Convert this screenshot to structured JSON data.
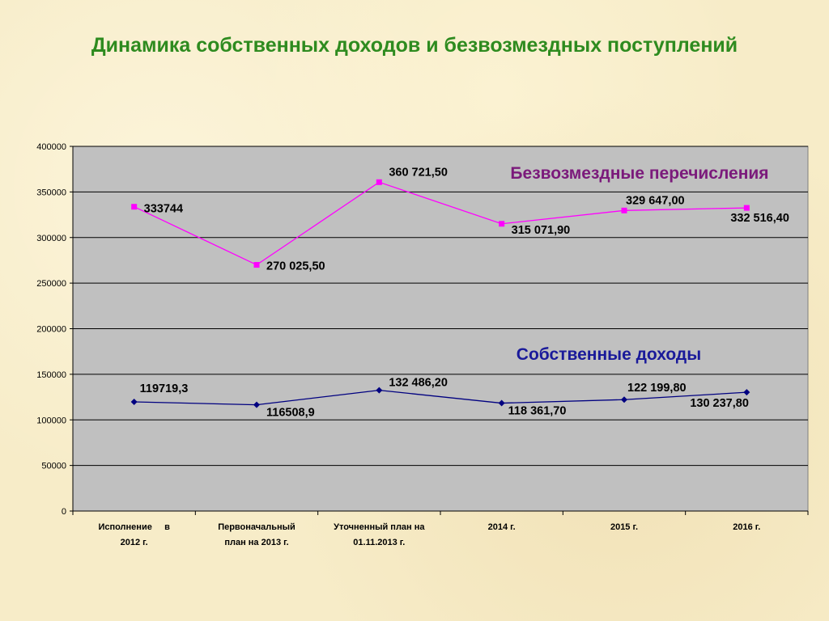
{
  "page": {
    "title": "Динамика собственных доходов и безвозмездных поступлений"
  },
  "chart_data": {
    "type": "line",
    "categories": [
      [
        "Исполнение     в",
        "2012 г."
      ],
      [
        "Первоначальный",
        "план на 2013 г."
      ],
      [
        "Уточненный план на",
        "01.11.2013 г."
      ],
      [
        "2014 г."
      ],
      [
        "2015 г."
      ],
      [
        "2016 г."
      ]
    ],
    "ylim": [
      0,
      400000
    ],
    "yticks": [
      0,
      50000,
      100000,
      150000,
      200000,
      250000,
      300000,
      350000,
      400000
    ],
    "grid": true,
    "series": [
      {
        "name": "Безвозмездные перечисления",
        "color": "#ff00ff",
        "label_color": "#7b1a7b",
        "marker": "square",
        "values": [
          333744,
          270025.5,
          360721.5,
          315071.9,
          329647,
          332516.4
        ],
        "labels": [
          "333744",
          "270 025,50",
          "360 721,50",
          "315 071,90",
          "329 647,00",
          "332 516,40"
        ]
      },
      {
        "name": "Собственные доходы",
        "color": "#000080",
        "label_color": "#1a1a9a",
        "marker": "diamond",
        "values": [
          119719.3,
          116508.9,
          132486.2,
          118361.7,
          122199.8,
          130237.8
        ],
        "labels": [
          "119719,3",
          "116508,9",
          "132 486,20",
          "118 361,70",
          "122 199,80",
          "130 237,80"
        ]
      }
    ]
  }
}
